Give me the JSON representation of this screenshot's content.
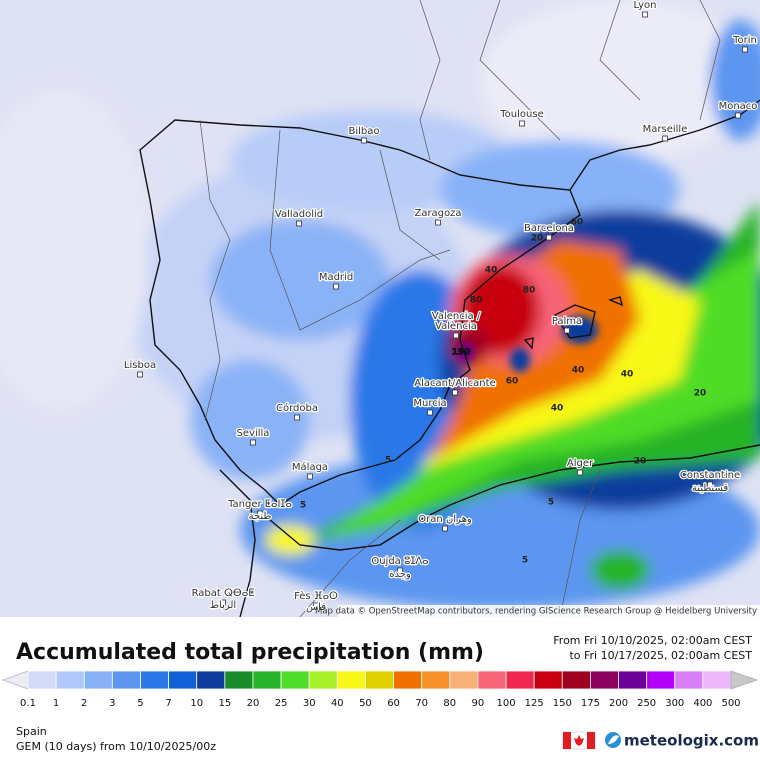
{
  "map": {
    "cities": [
      "Lyon",
      "Torin",
      "Monaco",
      "Marseille",
      "Toulouse",
      "Bilbao",
      "Zaragoza",
      "Barcelona",
      "Valladolid",
      "Madrid",
      "Valencia /",
      "València",
      "Palma",
      "Lisboa",
      "Alacant/Alicante",
      "Murcia",
      "Córdoba",
      "Sevilla",
      "Alger",
      "Málaga",
      "Constantine",
      "قسنطينة",
      "Tanger ⵟⴰⵏⵊⴰ",
      "طنجة",
      "Oran وهران",
      "Oujda ⵓⵊⴷⴰ",
      "وجدة",
      "Rabat ⵕⴱⴰⵟ",
      "الرباط",
      "Fès ⴼⴰⵙ",
      "فاس"
    ],
    "contour_labels": [
      "190",
      "80",
      "80",
      "60",
      "40",
      "40",
      "40",
      "40",
      "60",
      "20",
      "20",
      "20",
      "5",
      "5",
      "5",
      "5"
    ],
    "attribution": "Map data © OpenStreetMap contributors, rendering GIScience Research Group @ Heidelberg University"
  },
  "legend": {
    "title": "Accumulated total precipitation (mm)",
    "from": "From Fri 10/10/2025, 02:00am CEST",
    "to": "to Fri 10/17/2025, 02:00am CEST",
    "levels": [
      "0.1",
      "1",
      "2",
      "3",
      "5",
      "7",
      "10",
      "15",
      "20",
      "25",
      "30",
      "40",
      "50",
      "60",
      "70",
      "80",
      "90",
      "100",
      "125",
      "150",
      "175",
      "200",
      "250",
      "300",
      "400",
      "500"
    ],
    "colors": [
      "#ececf8",
      "#d4daf6",
      "#b0c8fa",
      "#88b2f8",
      "#5c96f0",
      "#2c78e8",
      "#1060d8",
      "#0c3c9c",
      "#1a8c2a",
      "#28b428",
      "#50dc28",
      "#a8f028",
      "#f8f818",
      "#e0d000",
      "#f07000",
      "#f89028",
      "#f8b078",
      "#f86478",
      "#f02850",
      "#c80010",
      "#a00020",
      "#8c0060",
      "#6c0098",
      "#b400f8",
      "#d880f8",
      "#ecb8f8",
      "#f4ecfc",
      "#c8c8c8"
    ]
  },
  "footer": {
    "region": "Spain",
    "model": "GEM (10 days)  from  10/10/2025/00z",
    "brand": "meteologix.com"
  }
}
